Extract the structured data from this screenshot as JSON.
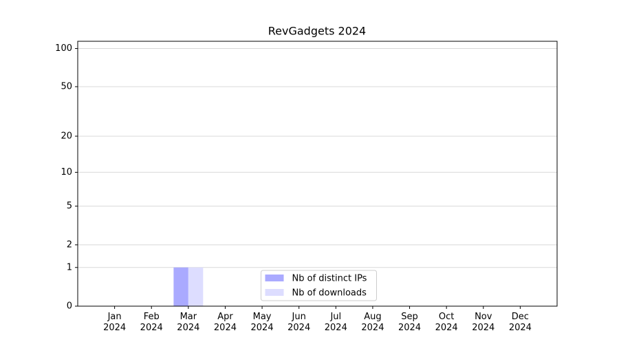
{
  "chart_data": {
    "type": "bar",
    "title": "RevGadgets 2024",
    "categories": [
      "Jan 2024",
      "Feb 2024",
      "Mar 2024",
      "Apr 2024",
      "May 2024",
      "Jun 2024",
      "Jul 2024",
      "Aug 2024",
      "Sep 2024",
      "Oct 2024",
      "Nov 2024",
      "Dec 2024"
    ],
    "series": [
      {
        "name": "Nb of distinct IPs",
        "color": "#aaaaff",
        "values": [
          0,
          0,
          1,
          0,
          0,
          0,
          0,
          0,
          0,
          0,
          0,
          0
        ]
      },
      {
        "name": "Nb of downloads",
        "color": "#ddddff",
        "values": [
          0,
          0,
          1,
          0,
          0,
          0,
          0,
          0,
          0,
          0,
          0,
          0
        ]
      }
    ],
    "yscale": "log1p",
    "ylim": [
      0,
      114
    ],
    "yticks": [
      0,
      1,
      2,
      5,
      10,
      20,
      50,
      100
    ],
    "grid": true,
    "legend": "lower center"
  }
}
